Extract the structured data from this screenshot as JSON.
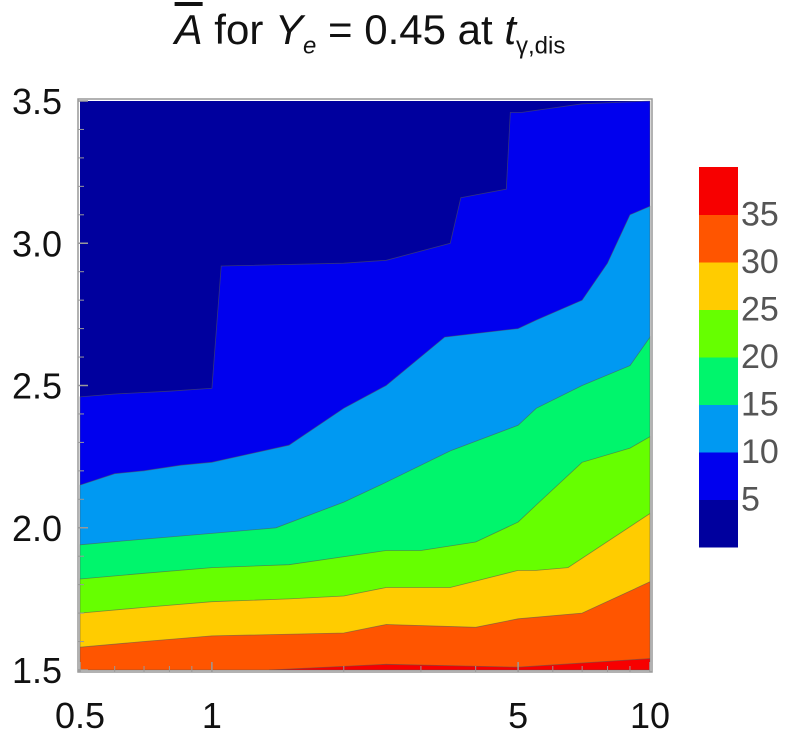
{
  "title": {
    "abar": "A",
    "for": " for ",
    "ye_var": "Y",
    "ye_sub": "e",
    "eq": " = 0.45 at ",
    "t_var": "t",
    "t_sub": "γ,dis"
  },
  "chart_data": {
    "type": "contour",
    "xscale": "log",
    "xlim": [
      0.5,
      10
    ],
    "ylim": [
      1.5,
      3.5
    ],
    "x_ticks": [
      0.5,
      1,
      5,
      10
    ],
    "x_tick_labels": [
      "0.5",
      "1",
      "5",
      "10"
    ],
    "y_ticks": [
      1.5,
      2.0,
      2.5,
      3.0,
      3.5
    ],
    "y_tick_labels": [
      "1.5",
      "2.0",
      "2.5",
      "3.0",
      "3.5"
    ],
    "levels": [
      5,
      10,
      15,
      20,
      25,
      30,
      35
    ],
    "legend_labels": [
      "35",
      "30",
      "25",
      "20",
      "15",
      "10",
      "5"
    ],
    "colors": [
      "#00009e",
      "#0000ee",
      "#0099f2",
      "#00f56c",
      "#66ff00",
      "#ffcc00",
      "#ff5500",
      "#f70000"
    ],
    "contours": [
      {
        "level": 5,
        "points": [
          [
            0.5,
            2.46
          ],
          [
            0.6,
            2.47
          ],
          [
            0.8,
            2.48
          ],
          [
            1.0,
            2.49
          ],
          [
            1.05,
            2.92
          ],
          [
            2.0,
            2.93
          ],
          [
            2.5,
            2.94
          ],
          [
            3.5,
            3.0
          ],
          [
            3.7,
            3.16
          ],
          [
            4.0,
            3.17
          ],
          [
            4.7,
            3.19
          ],
          [
            4.8,
            3.46
          ],
          [
            5.1,
            3.46
          ],
          [
            7.0,
            3.49
          ],
          [
            10.0,
            3.5
          ]
        ]
      },
      {
        "level": 10,
        "points": [
          [
            0.5,
            2.15
          ],
          [
            0.6,
            2.19
          ],
          [
            0.7,
            2.2
          ],
          [
            0.85,
            2.22
          ],
          [
            1.0,
            2.23
          ],
          [
            1.5,
            2.29
          ],
          [
            2.0,
            2.42
          ],
          [
            2.5,
            2.5
          ],
          [
            3.4,
            2.67
          ],
          [
            5.0,
            2.7
          ],
          [
            5.5,
            2.73
          ],
          [
            7.0,
            2.8
          ],
          [
            8.0,
            2.93
          ],
          [
            9.0,
            3.1
          ],
          [
            10.0,
            3.13
          ]
        ]
      },
      {
        "level": 15,
        "points": [
          [
            0.5,
            1.94
          ],
          [
            0.7,
            1.96
          ],
          [
            1.0,
            1.98
          ],
          [
            1.4,
            2.0
          ],
          [
            2.0,
            2.09
          ],
          [
            2.5,
            2.16
          ],
          [
            3.5,
            2.27
          ],
          [
            5.0,
            2.36
          ],
          [
            5.5,
            2.42
          ],
          [
            7.0,
            2.5
          ],
          [
            9.0,
            2.57
          ],
          [
            10.0,
            2.67
          ]
        ]
      },
      {
        "level": 20,
        "points": [
          [
            0.5,
            1.82
          ],
          [
            0.7,
            1.84
          ],
          [
            1.0,
            1.86
          ],
          [
            1.5,
            1.87
          ],
          [
            2.5,
            1.92
          ],
          [
            3.0,
            1.92
          ],
          [
            4.0,
            1.95
          ],
          [
            5.0,
            2.02
          ],
          [
            5.5,
            2.08
          ],
          [
            7.0,
            2.23
          ],
          [
            9.0,
            2.28
          ],
          [
            10.0,
            2.32
          ]
        ]
      },
      {
        "level": 25,
        "points": [
          [
            0.5,
            1.7
          ],
          [
            0.7,
            1.72
          ],
          [
            1.0,
            1.74
          ],
          [
            1.5,
            1.75
          ],
          [
            2.0,
            1.76
          ],
          [
            2.5,
            1.79
          ],
          [
            3.5,
            1.79
          ],
          [
            5.0,
            1.85
          ],
          [
            5.5,
            1.85
          ],
          [
            6.5,
            1.86
          ],
          [
            10.0,
            2.05
          ]
        ]
      },
      {
        "level": 30,
        "points": [
          [
            0.5,
            1.58
          ],
          [
            0.7,
            1.6
          ],
          [
            1.0,
            1.62
          ],
          [
            2.0,
            1.63
          ],
          [
            2.5,
            1.66
          ],
          [
            4.0,
            1.65
          ],
          [
            5.0,
            1.68
          ],
          [
            7.0,
            1.7
          ],
          [
            10.0,
            1.81
          ]
        ]
      },
      {
        "level": 35,
        "points": [
          [
            1.35,
            1.5
          ],
          [
            2.5,
            1.52
          ],
          [
            5.0,
            1.51
          ],
          [
            10.0,
            1.54
          ]
        ]
      }
    ]
  }
}
